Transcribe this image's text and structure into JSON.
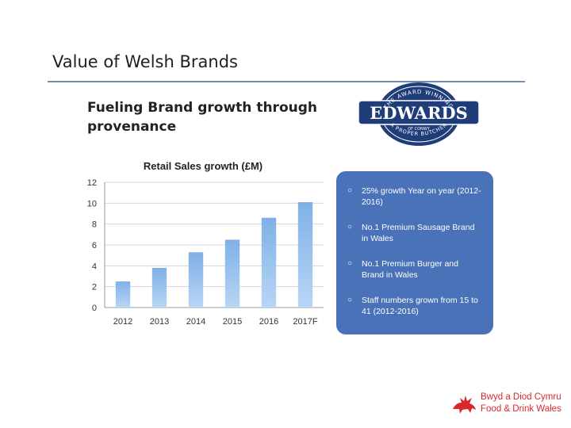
{
  "slide": {
    "title": "Value of Welsh Brands",
    "subtitle": "Fueling Brand growth through provenance"
  },
  "logo": {
    "top_text": "THE AWARD WINNING",
    "brand": "EDWARDS",
    "middle_text": "OF CONWY",
    "bottom_text": "A PROPER BUTCHER",
    "color": "#1f3d78"
  },
  "info_panel": {
    "color": "#4a72b8",
    "items": [
      "25% growth Year on year (2012-2016)",
      "No.1 Premium Sausage Brand in Wales",
      "No.1 Premium Burger and Brand in Wales",
      "Staff numbers grown from 15 to 41 (2012-2016)"
    ]
  },
  "footer_brand": {
    "line1": "Bwyd a Diod Cymru",
    "line2": "Food & Drink Wales",
    "icon": "welsh-dragon-icon",
    "color": "#d8282c"
  },
  "chart_data": {
    "type": "bar",
    "title": "Retail Sales growth (£M)",
    "categories": [
      "2012",
      "2013",
      "2014",
      "2015",
      "2016",
      "2017F"
    ],
    "values": [
      2.5,
      3.8,
      5.3,
      6.5,
      8.6,
      10.1
    ],
    "ylim": [
      0,
      12
    ],
    "yticks": [
      0,
      2,
      4,
      6,
      8,
      10,
      12
    ],
    "grid": true,
    "xlabel": "",
    "ylabel": "",
    "bar_color": "#7fb0e6"
  }
}
